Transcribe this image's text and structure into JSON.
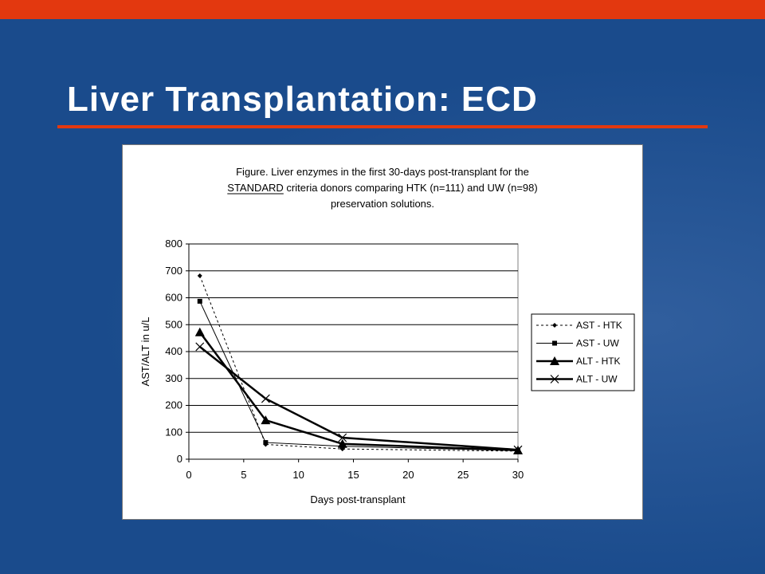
{
  "slide": {
    "title": "Liver Transplantation: ECD"
  },
  "colors": {
    "background": "#1a4b8c",
    "accent": "#e3380f",
    "chart_bg": "#ffffff"
  },
  "chart_data": {
    "type": "line",
    "title_lines": [
      "Figure. Liver enzymes in the first 30-days post-transplant for the",
      "STANDARD criteria donors comparing HTK (n=111) and UW (n=98)",
      "preservation solutions."
    ],
    "title_underlined_word": "STANDARD",
    "xlabel": "Days post-transplant",
    "ylabel": "AST/ALT in u/L",
    "xlim": [
      0,
      30
    ],
    "ylim": [
      0,
      800
    ],
    "xticks": [
      0,
      5,
      10,
      15,
      20,
      25,
      30
    ],
    "yticks": [
      0,
      100,
      200,
      300,
      400,
      500,
      600,
      700,
      800
    ],
    "grid": "horizontal",
    "legend_position": "right",
    "series": [
      {
        "name": "AST - HTK",
        "marker": "diamond",
        "line": "dashed",
        "x": [
          1,
          7,
          14,
          30
        ],
        "y": [
          682,
          55,
          38,
          30
        ]
      },
      {
        "name": "AST - UW",
        "marker": "square",
        "line": "thin",
        "x": [
          1,
          7,
          14,
          30
        ],
        "y": [
          587,
          62,
          48,
          32
        ]
      },
      {
        "name": "ALT - HTK",
        "marker": "triangle",
        "line": "thick",
        "x": [
          1,
          7,
          14,
          30
        ],
        "y": [
          472,
          145,
          57,
          33
        ]
      },
      {
        "name": "ALT - UW",
        "marker": "x",
        "line": "thick",
        "x": [
          1,
          7,
          14,
          30
        ],
        "y": [
          418,
          225,
          80,
          35
        ]
      }
    ]
  }
}
